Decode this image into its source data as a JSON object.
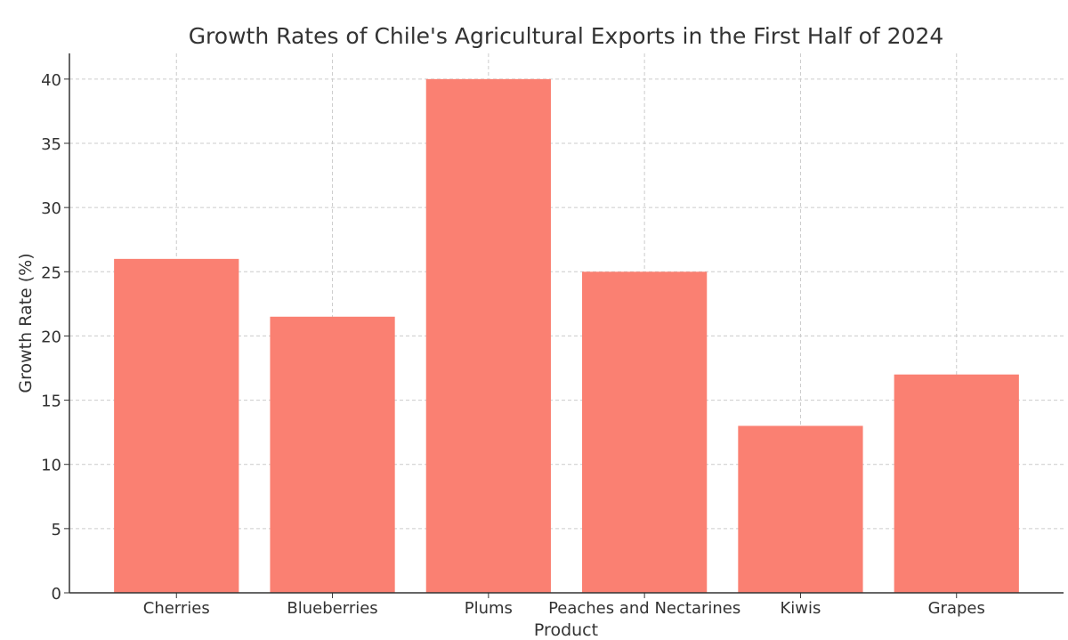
{
  "chart_data": {
    "type": "bar",
    "title": "Growth Rates of Chile's Agricultural Exports in the First Half of 2024",
    "xlabel": "Product",
    "ylabel": "Growth Rate (%)",
    "categories": [
      "Cherries",
      "Blueberries",
      "Plums",
      "Peaches and Nectarines",
      "Kiwis",
      "Grapes"
    ],
    "values": [
      26,
      21.5,
      40,
      25,
      13,
      17
    ],
    "ylim": [
      0,
      42
    ],
    "yticks": [
      0,
      5,
      10,
      15,
      20,
      25,
      30,
      35,
      40
    ],
    "grid": true,
    "bar_color": "#fa8072"
  }
}
